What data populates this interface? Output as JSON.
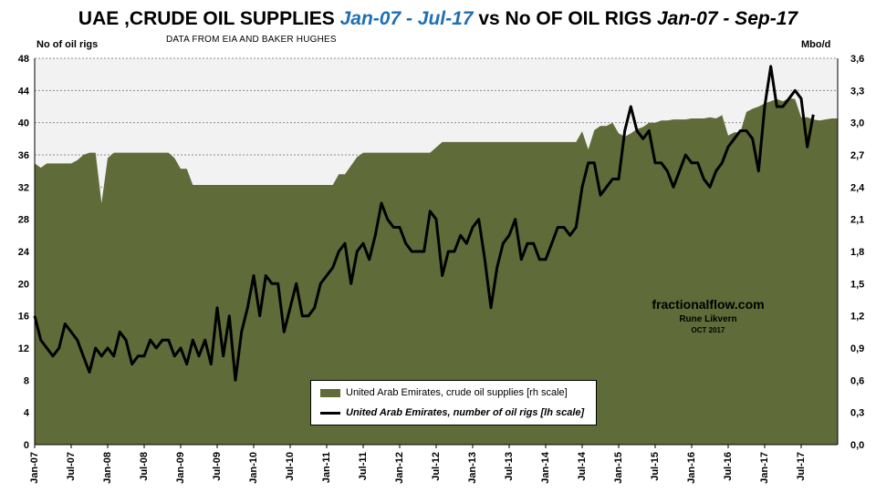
{
  "title": {
    "part1": "UAE ,CRUDE OIL SUPPLIES ",
    "part2": "Jan-07 - Jul-17",
    "part3": " vs No OF OIL RIGS ",
    "part4": "Jan-07 - Sep-17"
  },
  "subtitle": "DATA FROM EIA AND BAKER HUGHES",
  "left_axis_unit": "No of  oil rigs",
  "right_axis_unit": "Mbo/d",
  "watermark": {
    "site": "fractionalflow.com",
    "author": "Rune Likvern",
    "date": "OCT 2017"
  },
  "colors": {
    "area_fill": "#5f6b38",
    "rigs_line": "#000000",
    "plot_background": "#f2f2f2",
    "title_accent": "#1f6fb5"
  },
  "chart_data": {
    "type": "area",
    "xlabel": "",
    "ylabel_left": "No of  oil rigs",
    "ylabel_right": "Mbo/d",
    "ylim_left": [
      0,
      48
    ],
    "ylim_right": [
      0,
      3.6
    ],
    "yticks_left": [
      "0",
      "4",
      "8",
      "12",
      "16",
      "20",
      "24",
      "28",
      "32",
      "36",
      "40",
      "44",
      "48"
    ],
    "yticks_right": [
      "0,0",
      "0,3",
      "0,6",
      "0,9",
      "1,2",
      "1,5",
      "1,8",
      "2,1",
      "2,4",
      "2,7",
      "3,0",
      "3,3",
      "3,6"
    ],
    "xticks": [
      "Jan-07",
      "Jul-07",
      "Jan-08",
      "Jul-08",
      "Jan-09",
      "Jul-09",
      "Jan-10",
      "Jul-10",
      "Jan-11",
      "Jul-11",
      "Jan-12",
      "Jul-12",
      "Jan-13",
      "Jul-13",
      "Jan-14",
      "Jul-14",
      "Jan-15",
      "Jul-15",
      "Jan-16",
      "Jul-16",
      "Jan-17",
      "Jul-17"
    ],
    "grid": true,
    "legend_position": "bottom-center",
    "series": [
      {
        "name": "United Arab Emirates, crude oil supplies [rh scale]",
        "type": "area",
        "axis": "right",
        "start": "Jan-07",
        "frequency": "monthly",
        "values": [
          2.62,
          2.58,
          2.62,
          2.62,
          2.62,
          2.62,
          2.62,
          2.65,
          2.7,
          2.72,
          2.72,
          2.25,
          2.67,
          2.72,
          2.72,
          2.72,
          2.72,
          2.72,
          2.72,
          2.72,
          2.72,
          2.72,
          2.72,
          2.67,
          2.57,
          2.57,
          2.42,
          2.42,
          2.42,
          2.42,
          2.42,
          2.42,
          2.42,
          2.42,
          2.42,
          2.42,
          2.42,
          2.42,
          2.42,
          2.42,
          2.42,
          2.42,
          2.42,
          2.42,
          2.42,
          2.42,
          2.42,
          2.42,
          2.42,
          2.42,
          2.52,
          2.52,
          2.6,
          2.68,
          2.72,
          2.72,
          2.72,
          2.72,
          2.72,
          2.72,
          2.72,
          2.72,
          2.72,
          2.72,
          2.72,
          2.72,
          2.77,
          2.82,
          2.82,
          2.82,
          2.82,
          2.82,
          2.82,
          2.82,
          2.82,
          2.82,
          2.82,
          2.82,
          2.82,
          2.82,
          2.82,
          2.82,
          2.82,
          2.82,
          2.82,
          2.82,
          2.82,
          2.82,
          2.82,
          2.82,
          2.92,
          2.75,
          2.93,
          2.97,
          2.97,
          3.0,
          2.9,
          2.87,
          2.9,
          2.94,
          2.96,
          3.0,
          3.0,
          3.02,
          3.02,
          3.03,
          3.03,
          3.03,
          3.04,
          3.04,
          3.04,
          3.05,
          3.04,
          3.07,
          2.88,
          2.91,
          2.91,
          3.1,
          3.13,
          3.15,
          3.18,
          3.2,
          3.22,
          3.2,
          3.23,
          3.22,
          3.05,
          3.05,
          3.03,
          3.02,
          3.03,
          3.04,
          3.04
        ]
      },
      {
        "name": "United Arab Emirates, number of oil rigs [lh scale]",
        "type": "line",
        "axis": "left",
        "start": "Jan-07",
        "frequency": "monthly",
        "values": [
          16,
          13,
          12,
          11,
          12,
          15,
          14,
          13,
          11,
          9,
          12,
          11,
          12,
          11,
          14,
          13,
          10,
          11,
          11,
          13,
          12,
          13,
          13,
          11,
          12,
          10,
          13,
          11,
          13,
          10,
          17,
          11,
          16,
          8,
          14,
          17,
          21,
          16,
          21,
          20,
          20,
          14,
          17,
          20,
          16,
          16,
          17,
          20,
          21,
          22,
          24,
          25,
          20,
          24,
          25,
          23,
          26,
          30,
          28,
          27,
          27,
          25,
          24,
          24,
          24,
          29,
          28,
          21,
          24,
          24,
          26,
          25,
          27,
          28,
          23,
          17,
          22,
          25,
          26,
          28,
          23,
          25,
          25,
          23,
          23,
          25,
          27,
          27,
          26,
          27,
          32,
          35,
          35,
          31,
          32,
          33,
          33,
          39,
          42,
          39,
          38,
          39,
          35,
          35,
          34,
          32,
          34,
          36,
          35,
          35,
          33,
          32,
          34,
          35,
          37,
          38,
          39,
          39,
          38,
          34,
          42,
          47,
          42,
          42,
          43,
          44,
          43,
          37,
          41
        ]
      }
    ]
  }
}
